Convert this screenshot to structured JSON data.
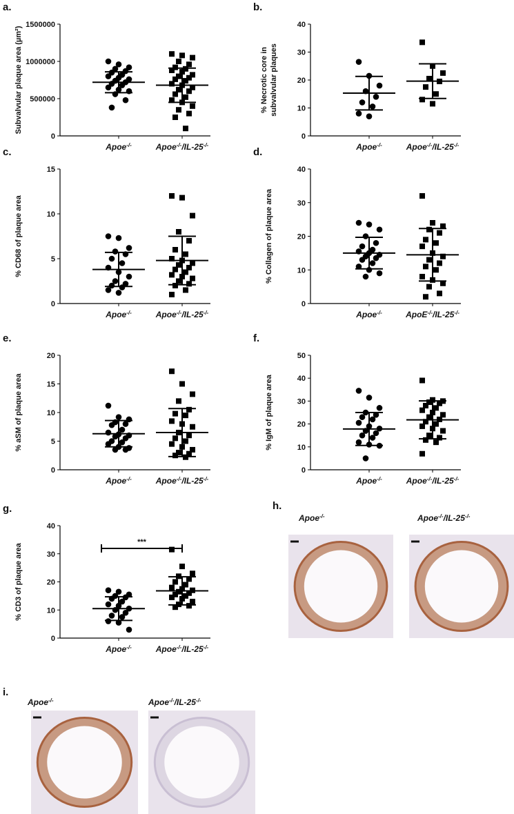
{
  "chart_data": [
    {
      "type": "dot",
      "panel": "a.",
      "y_label": [
        "Subvalvular plaque area (µm²)"
      ],
      "categories": [
        [
          "Apoe",
          "-/-"
        ],
        [
          "Apoe",
          "-/-",
          "/IL-25",
          "-/-"
        ]
      ],
      "markers": [
        "circle",
        "square"
      ],
      "color": "#000000",
      "groups": [
        {
          "values": [
            1000000,
            960000,
            920000,
            900000,
            870000,
            850000,
            820000,
            800000,
            780000,
            760000,
            740000,
            720000,
            700000,
            680000,
            650000,
            620000,
            600000,
            560000,
            480000,
            380000
          ],
          "mean": 720000,
          "error": 140000
        },
        {
          "values": [
            1100000,
            1080000,
            1050000,
            1000000,
            960000,
            920000,
            900000,
            880000,
            860000,
            820000,
            800000,
            780000,
            760000,
            740000,
            700000,
            680000,
            650000,
            620000,
            600000,
            560000,
            520000,
            480000,
            450000,
            400000,
            350000,
            300000,
            250000,
            100000
          ],
          "mean": 680000,
          "error": 230000
        }
      ],
      "ylim": [
        0,
        1500000
      ],
      "yticks": [
        0,
        500000,
        1000000,
        1500000
      ]
    },
    {
      "type": "dot",
      "panel": "b.",
      "y_label": [
        "% Necrotic core in",
        "subvalvular plaques"
      ],
      "categories": [
        [
          "Apoe",
          "-/-"
        ],
        [
          "Apoe",
          "-/-",
          "/IL-25",
          "-/-"
        ]
      ],
      "markers": [
        "circle",
        "square"
      ],
      "color": "#000000",
      "groups": [
        {
          "values": [
            26.5,
            21.5,
            18,
            16,
            14,
            12,
            10.5,
            8,
            7
          ],
          "mean": 15.3,
          "error": 6
        },
        {
          "values": [
            33.5,
            25,
            22.5,
            20.5,
            19.5,
            17.5,
            15,
            13,
            11.5
          ],
          "mean": 19.6,
          "error": 6.2
        }
      ],
      "ylim": [
        0,
        40
      ],
      "yticks": [
        0,
        10,
        20,
        30,
        40
      ]
    },
    {
      "type": "dot",
      "panel": "c.",
      "y_label": [
        "% CD68 of plaque area"
      ],
      "categories": [
        [
          "Apoe",
          "-/-"
        ],
        [
          "Apoe",
          "-/-",
          "/IL-25",
          "-/-"
        ]
      ],
      "markers": [
        "circle",
        "square"
      ],
      "color": "#000000",
      "groups": [
        {
          "values": [
            7.5,
            7.3,
            6.2,
            5.8,
            5.5,
            5,
            4.5,
            4,
            3.5,
            3,
            2.5,
            2.2,
            2,
            1.8,
            1.5,
            1.2
          ],
          "mean": 3.8,
          "error": 1.9
        },
        {
          "values": [
            12,
            11.8,
            9.8,
            8,
            7,
            6,
            5.5,
            5,
            4.8,
            4.5,
            4.3,
            4,
            3.8,
            3.5,
            3.2,
            3,
            2.8,
            2.5,
            2.2,
            2,
            1.5,
            1
          ],
          "mean": 4.8,
          "error": 2.7
        }
      ],
      "ylim": [
        0,
        15
      ],
      "yticks": [
        0,
        5,
        10,
        15
      ]
    },
    {
      "type": "dot",
      "panel": "d.",
      "y_label": [
        "% Collagen of plaque area"
      ],
      "categories": [
        [
          "Apoe",
          "-/-"
        ],
        [
          "ApoE",
          "-/-",
          "/IL-25",
          "-/-"
        ]
      ],
      "markers": [
        "circle",
        "square"
      ],
      "color": "#000000",
      "groups": [
        {
          "values": [
            24,
            23.5,
            22,
            20,
            18,
            17,
            16,
            15.5,
            15,
            14.5,
            14,
            13.5,
            13,
            12,
            11,
            10,
            9,
            8
          ],
          "mean": 15,
          "error": 4.7
        },
        {
          "values": [
            32,
            24,
            23,
            22,
            21,
            19,
            18,
            17,
            15,
            14,
            13,
            12,
            11,
            10,
            8,
            7,
            6,
            5,
            3,
            2
          ],
          "mean": 14.5,
          "error": 7.8
        }
      ],
      "ylim": [
        0,
        40
      ],
      "yticks": [
        0,
        10,
        20,
        30,
        40
      ]
    },
    {
      "type": "dot",
      "panel": "e.",
      "y_label": [
        "% aSM of plaque area"
      ],
      "categories": [
        [
          "Apoe",
          "-/-"
        ],
        [
          "Apoe",
          "-/-",
          "/IL-25",
          "-/-"
        ]
      ],
      "markers": [
        "circle",
        "square"
      ],
      "color": "#000000",
      "groups": [
        {
          "values": [
            11.2,
            9.2,
            8.8,
            8.3,
            8,
            7.8,
            7,
            6.5,
            6.2,
            6,
            5.8,
            5.5,
            5,
            4.8,
            4.5,
            4,
            3.8,
            3.5,
            3.5
          ],
          "mean": 6.3,
          "error": 2.3
        },
        {
          "values": [
            17.2,
            15,
            13.2,
            12,
            10.5,
            9.8,
            9.5,
            8.5,
            8,
            7.5,
            6.5,
            6,
            5.5,
            5,
            4.5,
            4,
            3.5,
            3,
            2.8,
            2.5,
            2.2
          ],
          "mean": 6.5,
          "error": 4.2
        }
      ],
      "ylim": [
        0,
        20
      ],
      "yticks": [
        0,
        5,
        10,
        15,
        20
      ]
    },
    {
      "type": "dot",
      "panel": "f.",
      "y_label": [
        "% IgM of plaque area"
      ],
      "categories": [
        [
          "Apoe",
          "-/-"
        ],
        [
          "Apoe",
          "-/-",
          "/IL-25",
          "-/-"
        ]
      ],
      "markers": [
        "circle",
        "square"
      ],
      "color": "#000000",
      "groups": [
        {
          "values": [
            34.5,
            31.5,
            27,
            25,
            24,
            23,
            22,
            20.5,
            19,
            18,
            17,
            16,
            15,
            14,
            12,
            11,
            10.5,
            5
          ],
          "mean": 17.8,
          "error": 7.2
        },
        {
          "values": [
            39,
            30.5,
            30,
            29.5,
            29,
            28,
            27,
            26,
            25,
            24,
            23,
            22,
            21,
            20,
            19,
            18,
            17,
            15,
            14,
            13,
            12,
            7
          ],
          "mean": 21.8,
          "error": 8.3
        }
      ],
      "ylim": [
        0,
        50
      ],
      "yticks": [
        0,
        10,
        20,
        30,
        40,
        50
      ]
    },
    {
      "type": "dot",
      "panel": "g.",
      "y_label": [
        "% CD3 of plaque area"
      ],
      "categories": [
        [
          "Apoe",
          "-/-"
        ],
        [
          "Apoe",
          "-/-",
          "/IL-25",
          "-/-"
        ]
      ],
      "markers": [
        "circle",
        "square"
      ],
      "color": "#000000",
      "groups": [
        {
          "values": [
            17,
            16.5,
            15.5,
            15,
            14.5,
            14,
            13,
            12,
            11.5,
            10.5,
            10,
            9,
            8,
            7.5,
            6,
            5.5,
            3
          ],
          "mean": 10.5,
          "error": 4.2
        },
        {
          "values": [
            31.5,
            25.5,
            23,
            22,
            21,
            20,
            19,
            18,
            17.5,
            17,
            16.5,
            16,
            15.5,
            15,
            14.5,
            14,
            13,
            12,
            11.5,
            11
          ],
          "mean": 16.8,
          "error": 5
        }
      ],
      "ylim": [
        0,
        40
      ],
      "yticks": [
        0,
        10,
        20,
        30,
        40
      ],
      "significance": "***"
    }
  ],
  "images": [
    {
      "panel": "h.",
      "captions": [
        [
          "Apoe",
          "-/-"
        ],
        [
          "Apoe",
          "-/-",
          "/IL-25",
          "-/-"
        ]
      ]
    },
    {
      "panel": "i.",
      "captions": [
        [
          "Apoe",
          "-/-"
        ],
        [
          "Apoe",
          "-/-",
          "/IL-25",
          "-/-"
        ]
      ]
    }
  ]
}
